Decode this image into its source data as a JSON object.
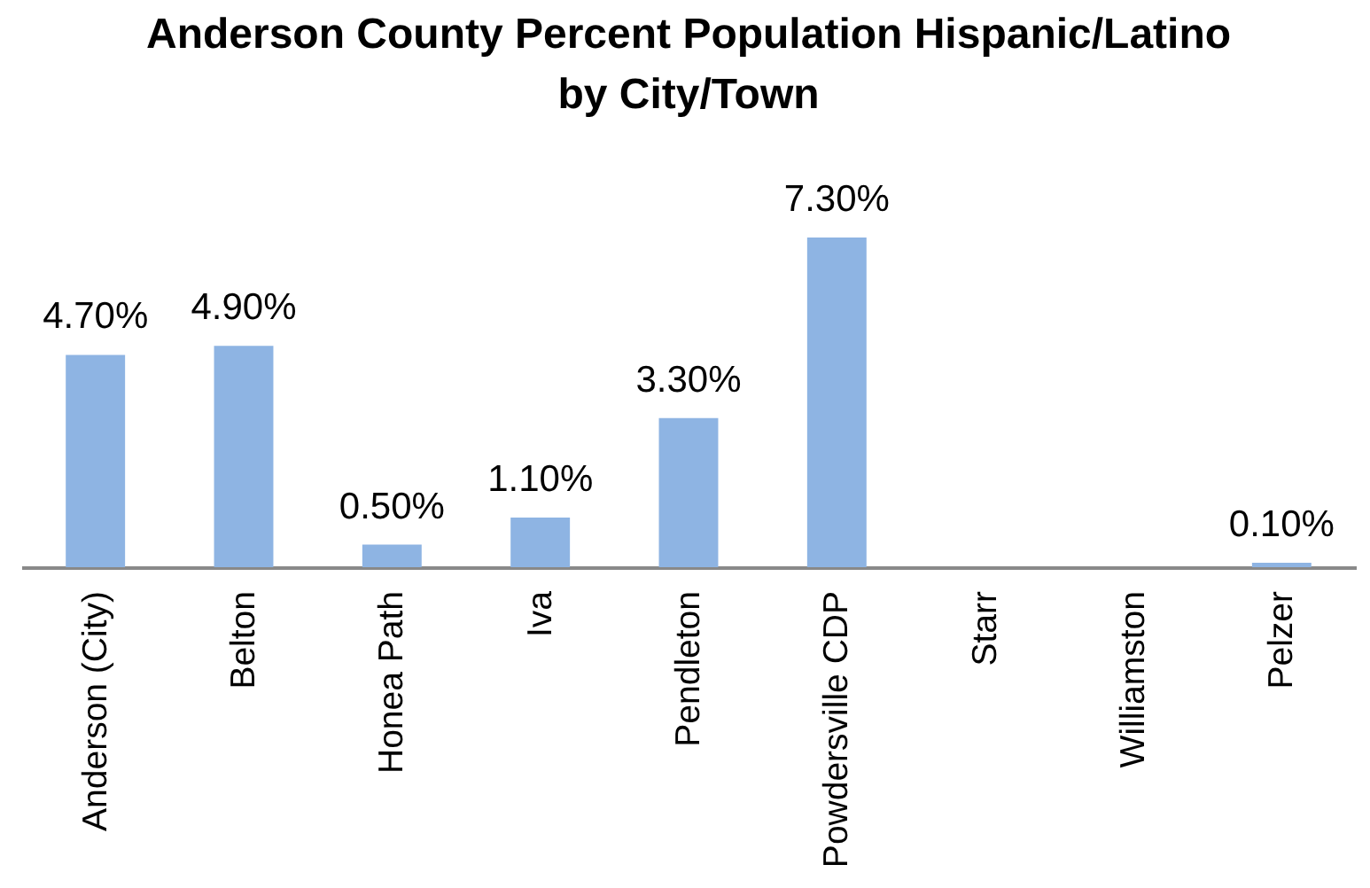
{
  "chart_data": {
    "type": "bar",
    "title": "Anderson County Percent Population Hispanic/Latino\nby City/Town",
    "categories": [
      "Anderson (City)",
      "Belton",
      "Honea Path",
      "Iva",
      "Pendleton",
      "Powdersville CDP",
      "Starr",
      "Williamston",
      "Pelzer"
    ],
    "values": [
      4.7,
      4.9,
      0.5,
      1.1,
      3.3,
      7.3,
      null,
      null,
      0.1
    ],
    "value_labels": [
      "4.70%",
      "4.90%",
      "0.50%",
      "1.10%",
      "3.30%",
      "7.30%",
      null,
      null,
      "0.10%"
    ],
    "color": "#8eb4e3",
    "tick_labels": "x"
  }
}
